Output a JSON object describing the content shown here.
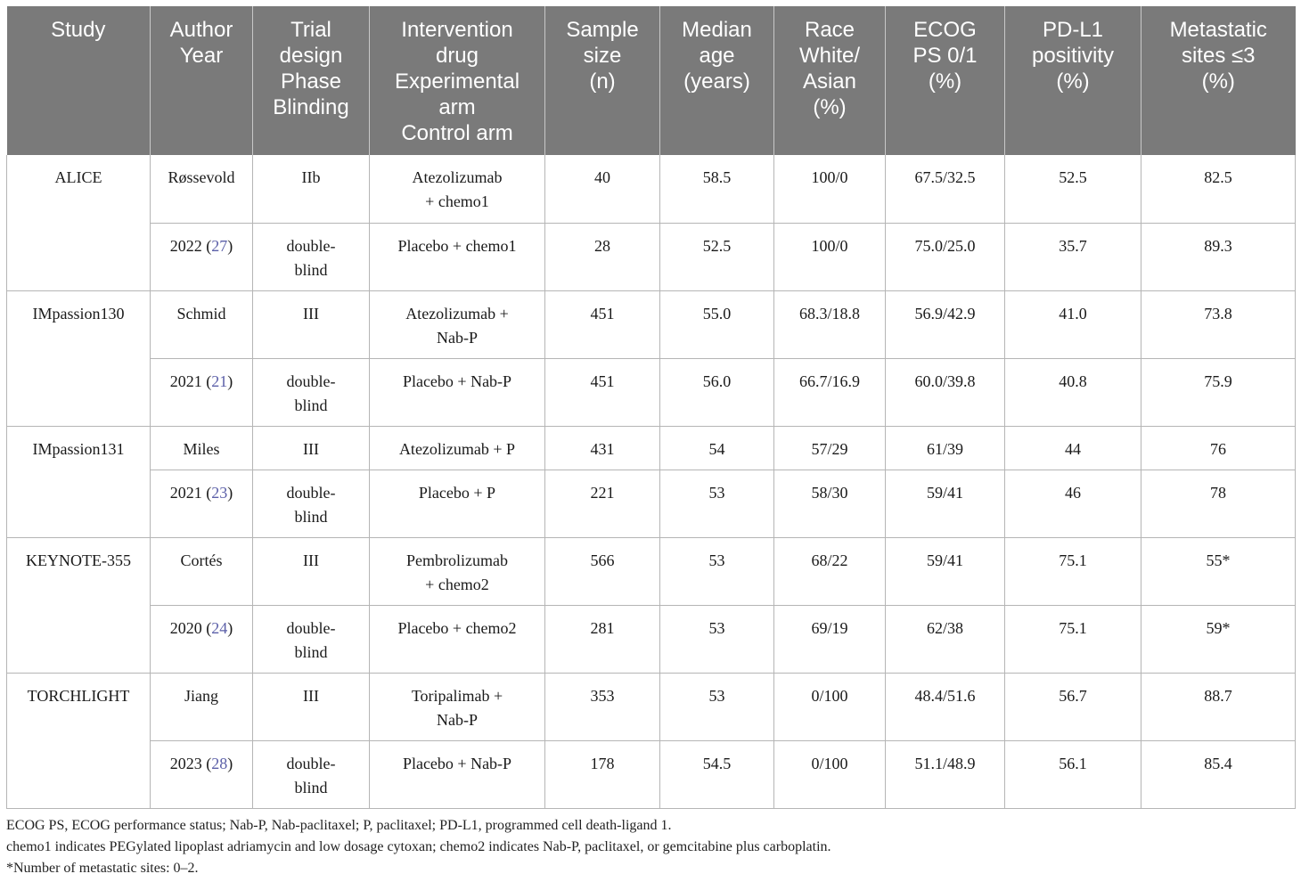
{
  "table": {
    "headers": [
      "Study",
      "Author\nYear",
      "Trial\ndesign\nPhase\nBlinding",
      "Intervention\ndrug\nExperimental\narm\nControl arm",
      "Sample\nsize\n(n)",
      "Median\nage\n(years)",
      "Race\nWhite/\nAsian\n(%)",
      "ECOG\nPS 0/1\n(%)",
      "PD-L1\npositivity\n(%)",
      "Metastatic\nsites ≤3\n(%)"
    ],
    "studies": [
      {
        "study": "ALICE",
        "author": "Røssevold",
        "year": "2022",
        "ref": "27",
        "arms": [
          {
            "design": "IIb",
            "drug": "Atezolizumab\n+ chemo1",
            "n": "40",
            "age": "58.5",
            "race": "100/0",
            "ecog": "67.5/32.5",
            "pdl1": "52.5",
            "meta": "82.5"
          },
          {
            "design": "double-\nblind",
            "drug": "Placebo + chemo1",
            "n": "28",
            "age": "52.5",
            "race": "100/0",
            "ecog": "75.0/25.0",
            "pdl1": "35.7",
            "meta": "89.3"
          }
        ]
      },
      {
        "study": "IMpassion130",
        "author": "Schmid",
        "year": "2021",
        "ref": "21",
        "arms": [
          {
            "design": "III",
            "drug": "Atezolizumab +\nNab-P",
            "n": "451",
            "age": "55.0",
            "race": "68.3/18.8",
            "ecog": "56.9/42.9",
            "pdl1": "41.0",
            "meta": "73.8"
          },
          {
            "design": "double-\nblind",
            "drug": "Placebo + Nab-P",
            "n": "451",
            "age": "56.0",
            "race": "66.7/16.9",
            "ecog": "60.0/39.8",
            "pdl1": "40.8",
            "meta": "75.9"
          }
        ]
      },
      {
        "study": "IMpassion131",
        "author": "Miles",
        "year": "2021",
        "ref": "23",
        "arms": [
          {
            "design": "III",
            "drug": "Atezolizumab + P",
            "n": "431",
            "age": "54",
            "race": "57/29",
            "ecog": "61/39",
            "pdl1": "44",
            "meta": "76"
          },
          {
            "design": "double-\nblind",
            "drug": "Placebo + P",
            "n": "221",
            "age": "53",
            "race": "58/30",
            "ecog": "59/41",
            "pdl1": "46",
            "meta": "78"
          }
        ]
      },
      {
        "study": "KEYNOTE-355",
        "author": "Cortés",
        "year": "2020",
        "ref": "24",
        "arms": [
          {
            "design": "III",
            "drug": "Pembrolizumab\n+ chemo2",
            "n": "566",
            "age": "53",
            "race": "68/22",
            "ecog": "59/41",
            "pdl1": "75.1",
            "meta": "55*"
          },
          {
            "design": "double-\nblind",
            "drug": "Placebo + chemo2",
            "n": "281",
            "age": "53",
            "race": "69/19",
            "ecog": "62/38",
            "pdl1": "75.1",
            "meta": "59*"
          }
        ]
      },
      {
        "study": "TORCHLIGHT",
        "author": "Jiang",
        "year": "2023",
        "ref": "28",
        "arms": [
          {
            "design": "III",
            "drug": "Toripalimab +\nNab-P",
            "n": "353",
            "age": "53",
            "race": "0/100",
            "ecog": "48.4/51.6",
            "pdl1": "56.7",
            "meta": "88.7"
          },
          {
            "design": "double-\nblind",
            "drug": "Placebo + Nab-P",
            "n": "178",
            "age": "54.5",
            "race": "0/100",
            "ecog": "51.1/48.9",
            "pdl1": "56.1",
            "meta": "85.4"
          }
        ]
      }
    ]
  },
  "footnotes": [
    "ECOG PS, ECOG performance status; Nab-P, Nab-paclitaxel; P, paclitaxel; PD-L1, programmed cell death-ligand 1.",
    "chemo1 indicates PEGylated lipoplast adriamycin and low dosage cytoxan; chemo2 indicates Nab-P, paclitaxel, or gemcitabine plus carboplatin.",
    "*Number of metastatic sites: 0–2."
  ],
  "colors": {
    "header_bg": "#7a7a7a",
    "header_text": "#ffffff",
    "reference_link": "#5b5fa8",
    "grid_line": "#b5b5b5"
  }
}
